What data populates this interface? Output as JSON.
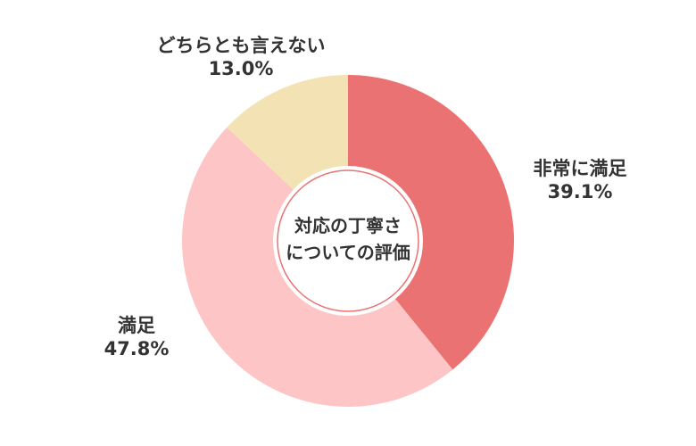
{
  "chart_data": {
    "type": "pie",
    "title": "対応の丁寧さについての評価",
    "title_lines": [
      "対応の丁寧さ",
      "についての評価"
    ],
    "slices": [
      {
        "name": "非常に満足",
        "value": 39.1,
        "value_label": "39.1%",
        "color": "#eb7272"
      },
      {
        "name": "満足",
        "value": 47.8,
        "value_label": "47.8%",
        "color": "#fdc5c5"
      },
      {
        "name": "どちらとも言えない",
        "value": 13.0,
        "value_label": "13.0%",
        "color": "#f3e2b3"
      }
    ],
    "start_position": "top",
    "direction": "clockwise",
    "donut": true,
    "legend": "none"
  }
}
